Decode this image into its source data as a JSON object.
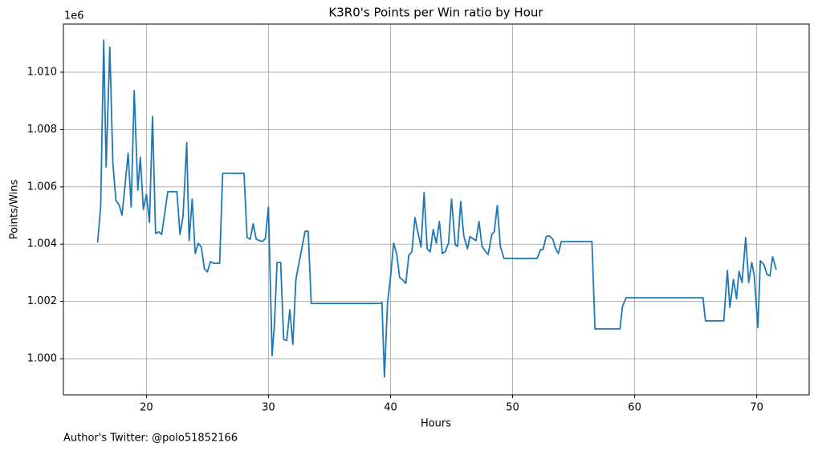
{
  "chart_data": {
    "type": "line",
    "title": "K3R0's Points per Win ratio by Hour",
    "xlabel": "Hours",
    "ylabel": "Points/Wins",
    "y_offset_label": "1e6",
    "x": [
      16.0,
      16.25,
      16.5,
      16.7,
      17.0,
      17.25,
      17.5,
      17.75,
      18.0,
      18.3,
      18.5,
      18.75,
      19.0,
      19.3,
      19.5,
      19.75,
      20.0,
      20.25,
      20.5,
      20.75,
      21.0,
      21.25,
      21.75,
      22.5,
      22.75,
      23.0,
      23.3,
      23.5,
      23.75,
      24.0,
      24.25,
      24.5,
      24.75,
      25.0,
      25.25,
      25.5,
      26.0,
      26.25,
      28.0,
      28.25,
      28.5,
      28.75,
      29.0,
      29.5,
      29.75,
      30.0,
      30.3,
      30.5,
      30.7,
      31.0,
      31.25,
      31.5,
      31.75,
      32.0,
      32.25,
      33.0,
      33.25,
      33.5,
      39.2,
      39.3,
      39.5,
      39.75,
      40.0,
      40.25,
      40.5,
      40.75,
      41.0,
      41.25,
      41.5,
      41.75,
      42.0,
      42.25,
      42.5,
      42.75,
      43.0,
      43.25,
      43.5,
      43.75,
      44.0,
      44.25,
      44.5,
      44.75,
      45.0,
      45.3,
      45.5,
      45.75,
      46.0,
      46.3,
      46.5,
      47.0,
      47.25,
      47.5,
      47.8,
      48.0,
      48.3,
      48.5,
      48.75,
      49.0,
      49.3,
      52.0,
      52.3,
      52.5,
      52.75,
      53.0,
      53.3,
      53.5,
      53.75,
      54.0,
      56.5,
      56.75,
      58.8,
      59.0,
      59.3,
      65.6,
      65.8,
      67.3,
      67.6,
      67.8,
      68.1,
      68.35,
      68.55,
      68.8,
      69.1,
      69.35,
      69.6,
      69.8,
      70.1,
      70.3,
      70.6,
      70.85,
      71.1,
      71.3,
      71.6
    ],
    "y": [
      1004060,
      1005290,
      1011120,
      1006690,
      1010870,
      1006830,
      1005520,
      1005380,
      1005010,
      1006270,
      1007170,
      1005290,
      1009360,
      1005880,
      1007030,
      1005210,
      1005740,
      1004760,
      1008460,
      1004370,
      1004430,
      1004340,
      1005830,
      1005830,
      1004340,
      1004960,
      1007540,
      1004120,
      1005570,
      1003670,
      1004030,
      1003890,
      1003140,
      1003030,
      1003390,
      1003330,
      1003330,
      1006470,
      1006470,
      1004230,
      1004170,
      1004710,
      1004170,
      1004090,
      1004200,
      1005290,
      1000110,
      1001260,
      1003360,
      1003360,
      1000670,
      1000640,
      1001710,
      1000500,
      1002770,
      1004450,
      1004450,
      1001930,
      1001930,
      1001960,
      999360,
      1001930,
      1002860,
      1004030,
      1003670,
      1002830,
      1002750,
      1002630,
      1003610,
      1003730,
      1004930,
      1004400,
      1003890,
      1005800,
      1003840,
      1003730,
      1004510,
      1004030,
      1004790,
      1003670,
      1003750,
      1004030,
      1005570,
      1003980,
      1003920,
      1005490,
      1004290,
      1003840,
      1004260,
      1004120,
      1004790,
      1003920,
      1003730,
      1003640,
      1004340,
      1004430,
      1005350,
      1003920,
      1003500,
      1003500,
      1003810,
      1003810,
      1004260,
      1004290,
      1004170,
      1003870,
      1003670,
      1004090,
      1004090,
      1001040,
      1001040,
      1001820,
      1002130,
      1002130,
      1001320,
      1001320,
      1003080,
      1001790,
      1002770,
      1002100,
      1003050,
      1002660,
      1004230,
      1002660,
      1003360,
      1002890,
      1001090,
      1003420,
      1003280,
      1002940,
      1002890,
      1003560,
      1003110
    ],
    "color": "#1f77b4",
    "xlim": [
      13.2,
      74.3
    ],
    "xticks": [
      20,
      30,
      40,
      50,
      60,
      70
    ],
    "ylim": [
      998740,
      1011680
    ],
    "yticks": [
      {
        "value": 1000000,
        "label": "1.000"
      },
      {
        "value": 1002000,
        "label": "1.002"
      },
      {
        "value": 1004000,
        "label": "1.004"
      },
      {
        "value": 1006000,
        "label": "1.006"
      },
      {
        "value": 1008000,
        "label": "1.008"
      },
      {
        "value": 1010000,
        "label": "1.010"
      }
    ],
    "grid": true
  },
  "footer": "Author's Twitter: @polo51852166"
}
